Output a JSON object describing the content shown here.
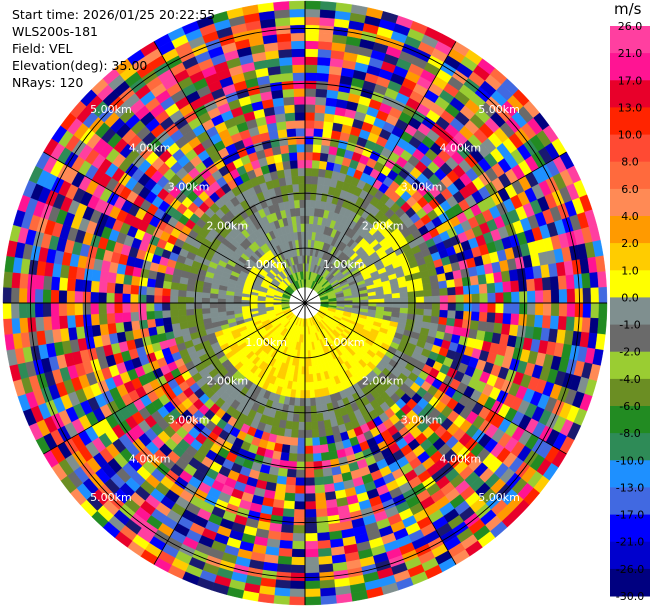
{
  "header": {
    "start_time": "Start time: 2026/01/25 20:22:55",
    "instrument": "WLS200s-181",
    "field": "Field: VEL",
    "elevation": "Elevation(deg): 35.00",
    "nrays": "NRays: 120"
  },
  "chart_data": {
    "type": "heatmap",
    "projection": "polar-ppi",
    "field": "VEL",
    "elevation_deg": 35.0,
    "n_rays": 120,
    "range_rings_km": [
      1.0,
      2.0,
      3.0,
      4.0,
      5.0
    ],
    "range_ring_labels": [
      "1.00km",
      "2.00km",
      "3.00km",
      "4.00km",
      "5.00km"
    ],
    "max_range_km": 5.5,
    "grid_spokes_deg": [
      0,
      30,
      60,
      90,
      120,
      150,
      180,
      210,
      240,
      270,
      300,
      330
    ],
    "colorbar": {
      "unit": "m/s",
      "tick_labels": [
        "26.0",
        "21.0",
        "17.0",
        "13.0",
        "10.0",
        "8.0",
        "6.0",
        "4.0",
        "2.0",
        "1.0",
        "0.0",
        "-1.0",
        "-2.0",
        "-4.0",
        "-6.0",
        "-8.0",
        "-10.0",
        "-13.0",
        "-17.0",
        "-21.0",
        "-26.0",
        "-30.0"
      ],
      "colors": [
        "#ff3fa0",
        "#ff1493",
        "#e8002a",
        "#ff2400",
        "#ff4a33",
        "#ff6a3d",
        "#ff8a55",
        "#ff9a00",
        "#ffcc00",
        "#ffff00",
        "#7f8f8f",
        "#6a6a6a",
        "#9acd32",
        "#6b8e23",
        "#228b22",
        "#2e8b57",
        "#1e90ff",
        "#4169e1",
        "#0000ff",
        "#0000cd",
        "#000080",
        "#191970"
      ]
    },
    "observations": {
      "inner_echo": "near-zero velocities (greys) with yellow (~2-4 m/s) and green (~-2 to -6 m/s) patches within ~2.5 km",
      "outer_region": "noise beyond ~2.5 km covering the full colour range"
    }
  }
}
